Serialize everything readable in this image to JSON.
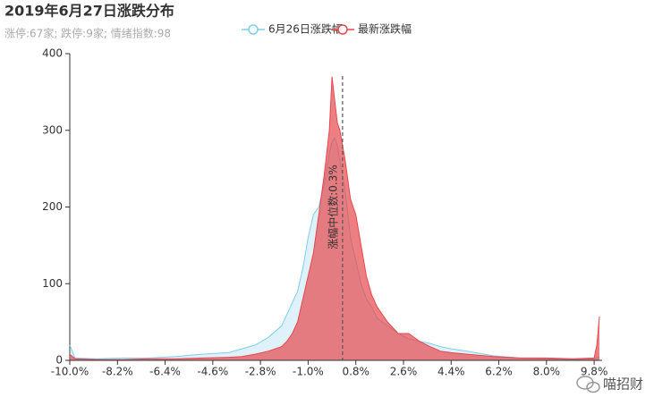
{
  "chart_data": {
    "type": "area",
    "title": "2019年6月27日涨跌分布",
    "subtitle": "涨停:67家; 跌停:9家; 情绪指数:98",
    "x": [
      -10,
      -9.8,
      -9,
      -8,
      -7,
      -6,
      -5,
      -4,
      -3.5,
      -3,
      -2.5,
      -2,
      -1.8,
      -1.6,
      -1.4,
      -1.2,
      -1.0,
      -0.8,
      -0.6,
      -0.4,
      -0.2,
      -0.1,
      0,
      0.1,
      0.2,
      0.4,
      0.6,
      0.8,
      1.0,
      1.2,
      1.4,
      1.6,
      1.8,
      2.0,
      2.4,
      2.8,
      3.2,
      3.6,
      4.0,
      4.4,
      5.0,
      6.0,
      7.0,
      8.0,
      9.0,
      9.8,
      9.9,
      10.0
    ],
    "series": [
      {
        "name": "6月26日涨跌幅",
        "color": "#7fcdee",
        "values": [
          20,
          3,
          2,
          3,
          3,
          5,
          8,
          10,
          15,
          20,
          30,
          45,
          60,
          75,
          90,
          120,
          160,
          190,
          200,
          230,
          270,
          285,
          290,
          280,
          260,
          220,
          160,
          130,
          100,
          80,
          70,
          55,
          50,
          45,
          35,
          28,
          25,
          22,
          18,
          15,
          12,
          6,
          3,
          2,
          1,
          2,
          3,
          5
        ]
      },
      {
        "name": "最新涨跌幅",
        "color": "#e5484d",
        "values": [
          8,
          2,
          1,
          1,
          2,
          2,
          3,
          4,
          5,
          8,
          12,
          18,
          25,
          35,
          50,
          80,
          110,
          140,
          190,
          240,
          300,
          370,
          340,
          310,
          300,
          260,
          210,
          190,
          150,
          110,
          85,
          70,
          60,
          50,
          35,
          35,
          25,
          18,
          12,
          10,
          8,
          5,
          3,
          3,
          2,
          3,
          20,
          57
        ]
      }
    ],
    "xlim": [
      -10,
      10.1
    ],
    "xticks": [
      {
        "value": -10,
        "label": "-10.0%"
      },
      {
        "value": -8.2,
        "label": "-8.2%"
      },
      {
        "value": -6.4,
        "label": "-6.4%"
      },
      {
        "value": -4.6,
        "label": "-4.6%"
      },
      {
        "value": -2.8,
        "label": "-2.8%"
      },
      {
        "value": -1.0,
        "label": "-1.0%"
      },
      {
        "value": 0.8,
        "label": "0.8%"
      },
      {
        "value": 2.6,
        "label": "2.6%"
      },
      {
        "value": 4.4,
        "label": "4.4%"
      },
      {
        "value": 6.2,
        "label": "6.2%"
      },
      {
        "value": 8.0,
        "label": "8.0%"
      },
      {
        "value": 9.8,
        "label": "9.8%"
      }
    ],
    "ylim": [
      0,
      400
    ],
    "yticks": [
      0,
      100,
      200,
      300,
      400
    ],
    "markline": {
      "value": 0.3,
      "label": "涨幅中位数:0.3%"
    },
    "watermark": "喵招财"
  }
}
